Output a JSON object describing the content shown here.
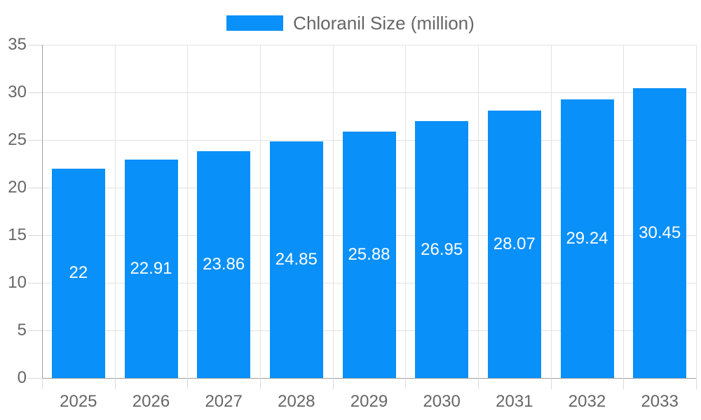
{
  "chart_data": {
    "type": "bar",
    "title": "",
    "legend_label": "Chloranil Size (million)",
    "legend_position": "top",
    "categories": [
      "2025",
      "2026",
      "2027",
      "2028",
      "2029",
      "2030",
      "2031",
      "2032",
      "2033"
    ],
    "series": [
      {
        "name": "Chloranil Size (million)",
        "values": [
          22,
          22.91,
          23.86,
          24.85,
          25.88,
          26.95,
          28.07,
          29.24,
          30.45
        ],
        "color": "#0990F9"
      }
    ],
    "bar_labels": [
      "22",
      "22.91",
      "23.86",
      "24.85",
      "25.88",
      "26.95",
      "28.07",
      "29.24",
      "30.45"
    ],
    "xlabel": "",
    "ylabel": "",
    "ylim": [
      0,
      35
    ],
    "yticks": [
      0,
      5,
      10,
      15,
      20,
      25,
      30,
      35
    ],
    "grid": true
  },
  "palette": {
    "bar": "#0990F9",
    "grid": "#E2E2E2",
    "tick": "#D9D9D9",
    "axis": "#9E9E9E",
    "text": "#666666",
    "bar_label_text": "#FFFFFF"
  }
}
